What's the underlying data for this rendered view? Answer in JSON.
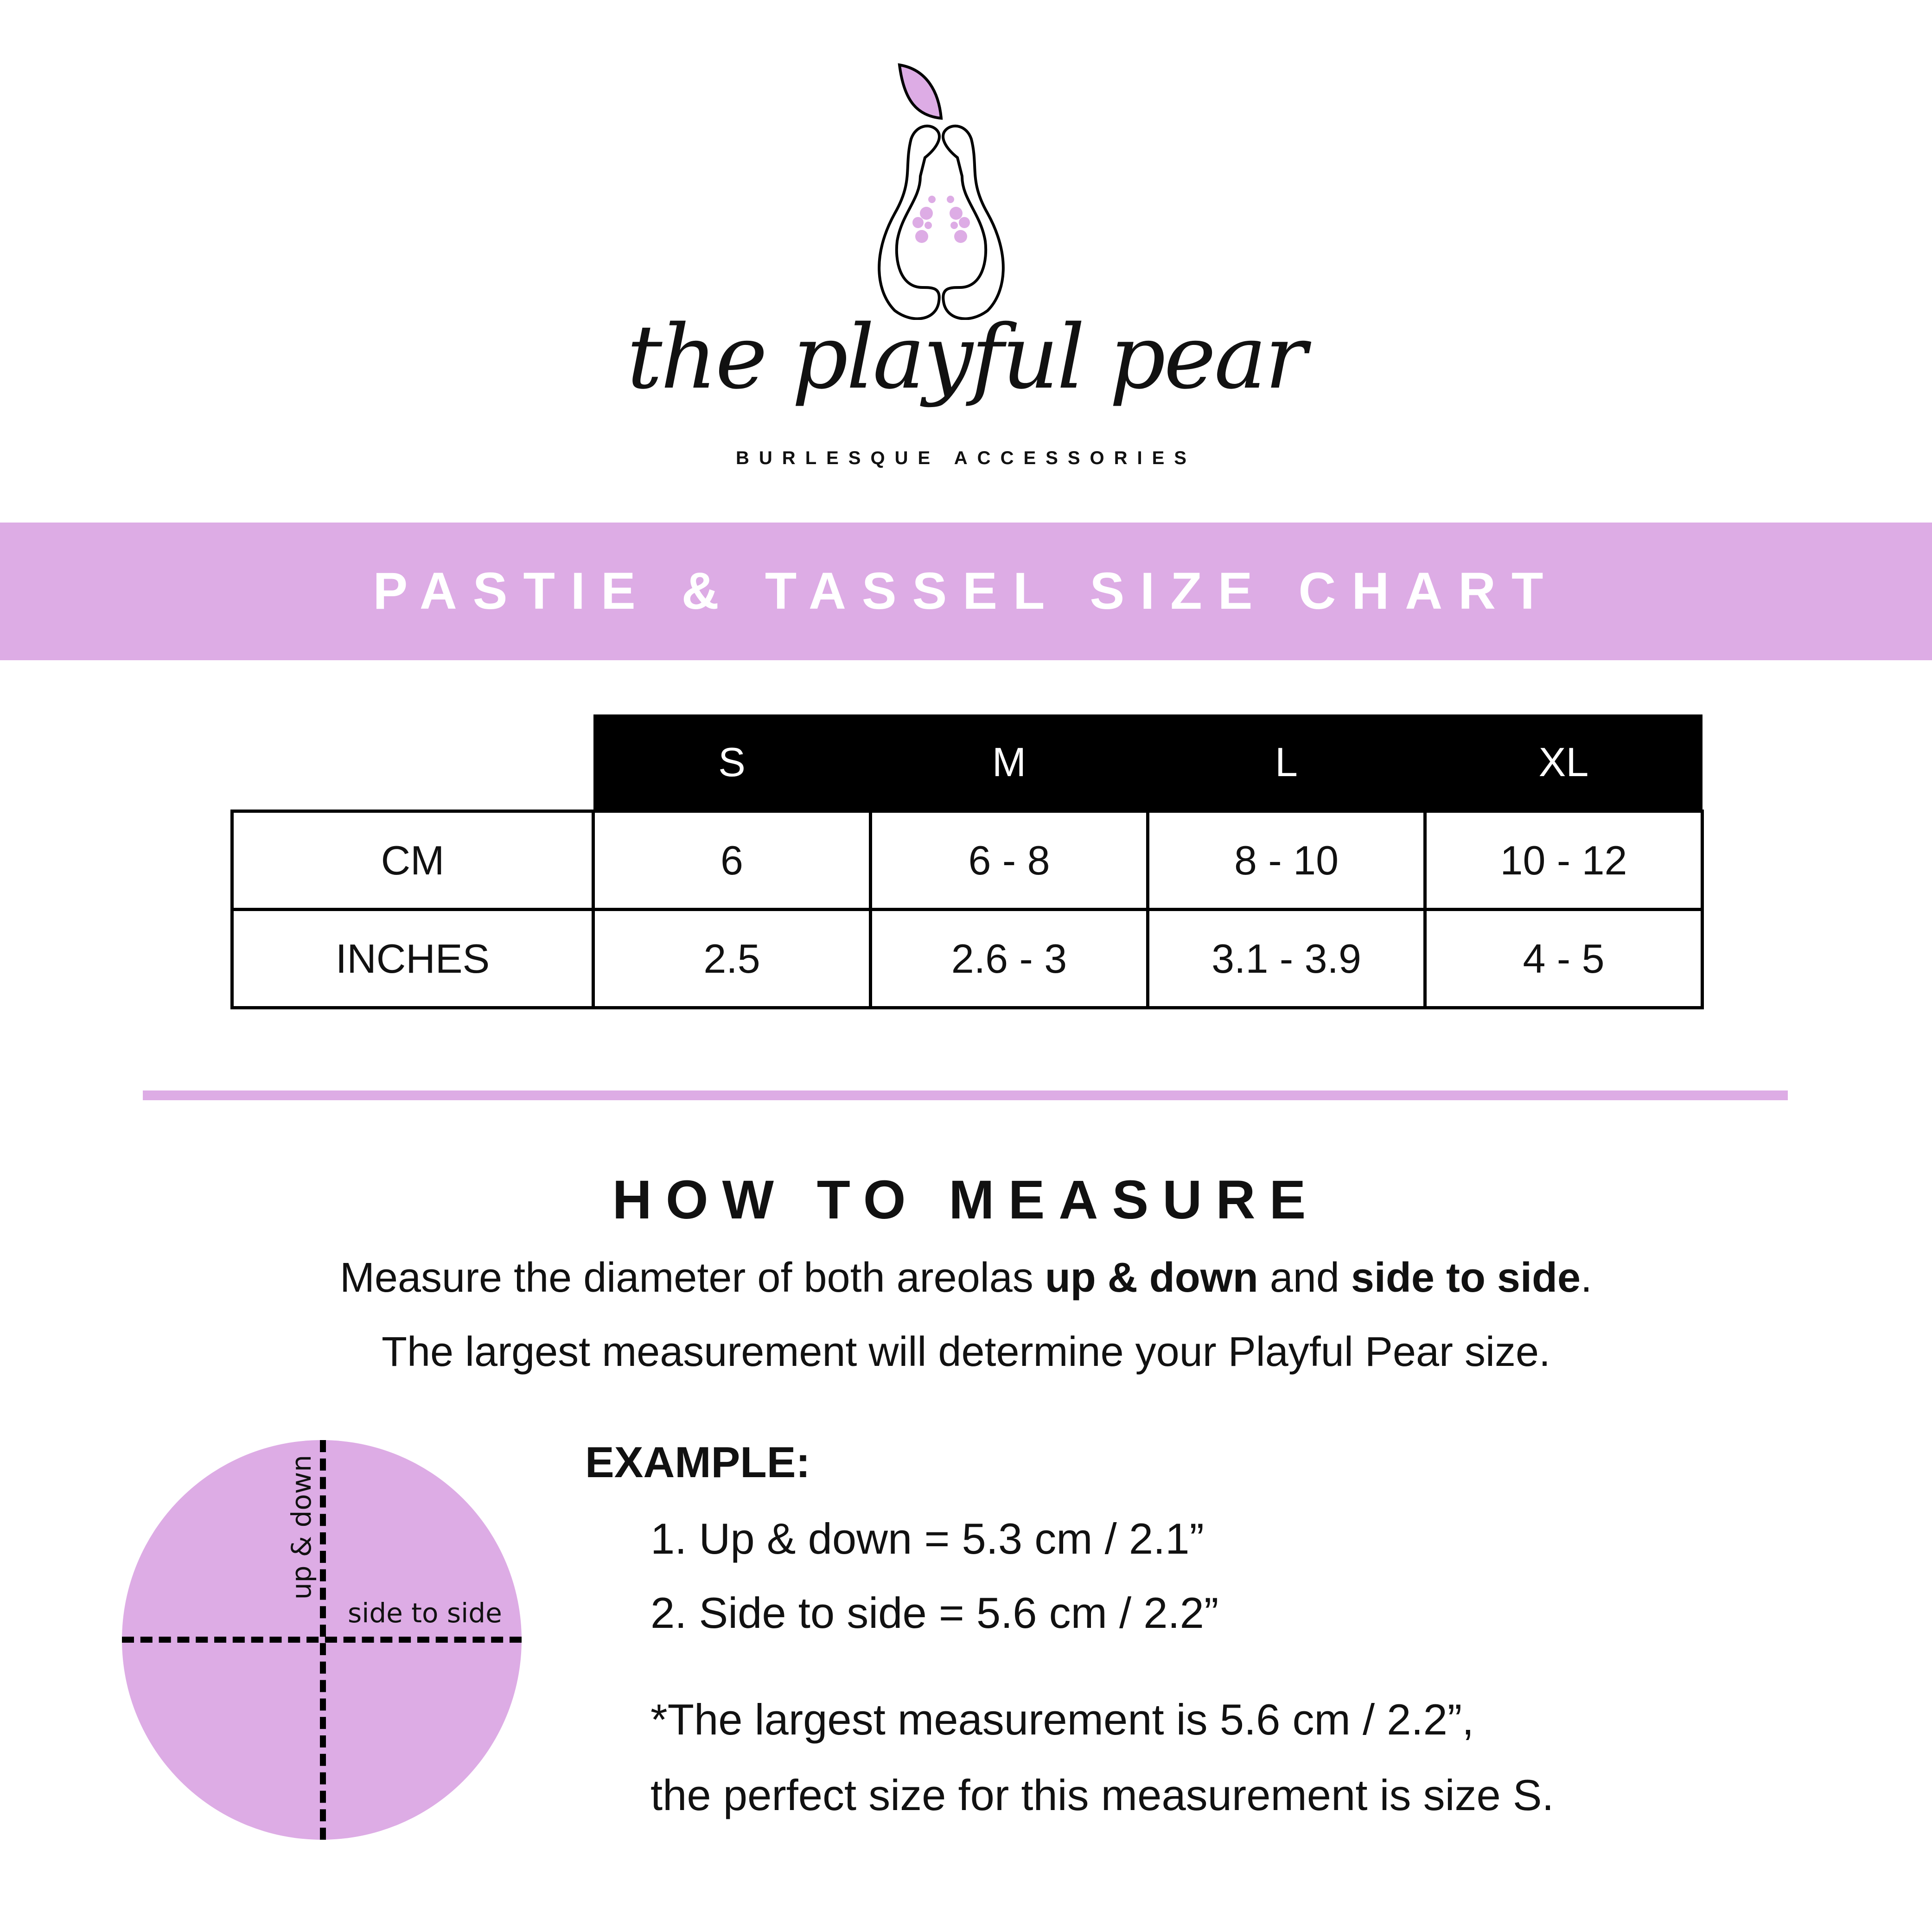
{
  "brand": {
    "logo_text": "the playful pear",
    "tagline": "BURLESQUE ACCESSORIES",
    "accent_color": "#DDACE5"
  },
  "banner": {
    "title": "PASTIE & TASSEL SIZE CHART"
  },
  "size_table": {
    "sizes": [
      "S",
      "M",
      "L",
      "XL"
    ],
    "rows": [
      {
        "label": "CM",
        "values": [
          "6",
          "6 - 8",
          "8 - 10",
          "10 - 12"
        ]
      },
      {
        "label": "INCHES",
        "values": [
          "2.5",
          "2.6 - 3",
          "3.1 - 3.9",
          "4 - 5"
        ]
      }
    ]
  },
  "measure": {
    "heading": "HOW TO MEASURE",
    "line1_a": "Measure the diameter of both areolas ",
    "line1_b": "up & down",
    "line1_c": " and ",
    "line1_d": "side to side",
    "line1_e": ".",
    "line2": "The largest measurement will determine your Playful Pear size.",
    "diagram": {
      "vertical_label": "up & down",
      "horizontal_label": "side to side"
    },
    "example": {
      "title": "EXAMPLE:",
      "items": [
        "1. Up & down = 5.3 cm / 2.1”",
        "2. Side to side = 5.6 cm / 2.2”"
      ],
      "note1": "*The largest measurement is 5.6 cm / 2.2”,",
      "note2": "the perfect size for this measurement is size S."
    }
  }
}
